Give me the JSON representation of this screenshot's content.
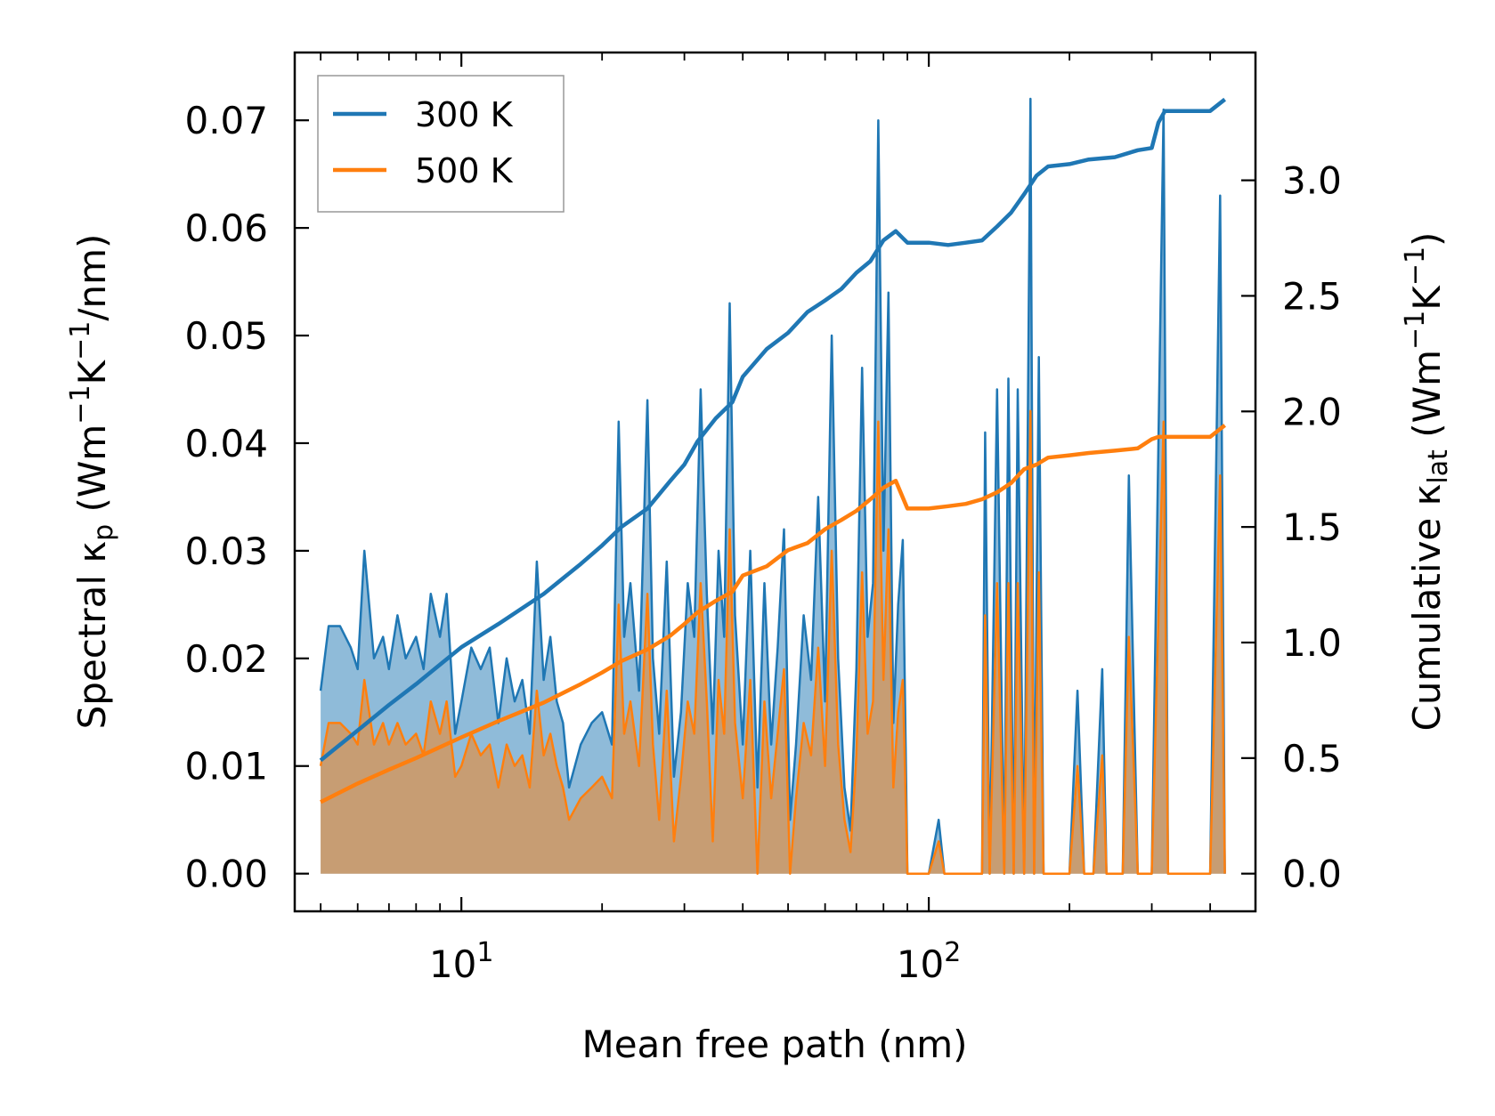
{
  "chart_data": {
    "type": "line",
    "xscale": "log",
    "xlabel": "Mean free path (nm)",
    "xlim": [
      4.4,
      500
    ],
    "xticks": [
      {
        "value": 10,
        "base": "10",
        "exp": "1"
      },
      {
        "value": 100,
        "base": "10",
        "exp": "2"
      }
    ],
    "ylabel_left": {
      "prefix": "Spectral κ",
      "sub": "p",
      "unit_a": " (Wm",
      "sup1": "−1",
      "unit_b": "K",
      "sup2": "−1",
      "unit_c": "/nm)"
    },
    "ylabel_right": {
      "prefix": "Cumulative κ",
      "sub": "lat",
      "unit_a": " (Wm",
      "sup1": "−1",
      "unit_b": "K",
      "sup2": "−1",
      "unit_c": ")"
    },
    "ylim_left": [
      -0.0035,
      0.0763
    ],
    "yticks_left": [
      "0.00",
      "0.01",
      "0.02",
      "0.03",
      "0.04",
      "0.05",
      "0.06",
      "0.07"
    ],
    "ylim_right": [
      -0.163,
      3.553
    ],
    "yticks_right": [
      "0.0",
      "0.5",
      "1.0",
      "1.5",
      "2.0",
      "2.5",
      "3.0"
    ],
    "legend": {
      "position": "top-left",
      "entries": [
        "300 K",
        "500 K"
      ]
    },
    "colors": {
      "300 K": "#1f77b4",
      "500 K": "#ff7f0e"
    },
    "spectral_300K": {
      "x": [
        5.0,
        5.2,
        5.5,
        5.8,
        6.0,
        6.2,
        6.5,
        6.8,
        7.0,
        7.3,
        7.6,
        8.0,
        8.3,
        8.6,
        9.0,
        9.3,
        9.7,
        10.0,
        10.5,
        11.0,
        11.5,
        12.0,
        12.5,
        13.0,
        13.5,
        14.0,
        14.5,
        15.0,
        15.5,
        16.0,
        16.5,
        17.0,
        18.0,
        19.0,
        20.0,
        21.0,
        21.7,
        22.3,
        23.0,
        24.0,
        25.0,
        25.7,
        26.5,
        27.5,
        28.5,
        29.5,
        30.5,
        31.5,
        32.5,
        33.5,
        34.5,
        35.5,
        36.5,
        37.5,
        38.5,
        40.0,
        41.5,
        43.0,
        44.5,
        46.0,
        47.5,
        49.0,
        50.5,
        52.0,
        54.0,
        56.0,
        58.0,
        60.0,
        62.0,
        64.0,
        66.0,
        68.0,
        70.0,
        72.0,
        74.0,
        76.0,
        78.0,
        80.0,
        82.0,
        84.0,
        86.0,
        88.0,
        90.0,
        93.0,
        96.0,
        100.0,
        105.0,
        108.0,
        112.0,
        120.0,
        130.0,
        132.0,
        135.0,
        140.0,
        145.0,
        148.0,
        152.0,
        155.0,
        160.0,
        165.0,
        168.0,
        172.0,
        176.0,
        180.0,
        185.0,
        190.0,
        200.0,
        208.0,
        215.0,
        225.0,
        235.0,
        240.0,
        250.0,
        260.0,
        268.0,
        280.0,
        300.0,
        318.0,
        325.0,
        335.0,
        345.0,
        400.0,
        420.0,
        430.0
      ],
      "values": [
        0.017,
        0.023,
        0.023,
        0.021,
        0.019,
        0.03,
        0.02,
        0.022,
        0.019,
        0.024,
        0.02,
        0.022,
        0.019,
        0.026,
        0.022,
        0.026,
        0.013,
        0.016,
        0.021,
        0.019,
        0.021,
        0.014,
        0.02,
        0.016,
        0.018,
        0.013,
        0.029,
        0.018,
        0.022,
        0.016,
        0.014,
        0.008,
        0.012,
        0.014,
        0.015,
        0.012,
        0.042,
        0.022,
        0.027,
        0.017,
        0.044,
        0.02,
        0.013,
        0.029,
        0.009,
        0.015,
        0.027,
        0.022,
        0.045,
        0.026,
        0.013,
        0.03,
        0.022,
        0.053,
        0.024,
        0.012,
        0.03,
        0.008,
        0.027,
        0.012,
        0.021,
        0.032,
        0.005,
        0.012,
        0.024,
        0.018,
        0.035,
        0.016,
        0.05,
        0.02,
        0.008,
        0.004,
        0.019,
        0.047,
        0.022,
        0.027,
        0.07,
        0.03,
        0.054,
        0.014,
        0.025,
        0.031,
        0.0,
        0.0,
        0.0,
        0.0,
        0.005,
        0.0,
        0.0,
        0.0,
        0.0,
        0.041,
        0.0,
        0.045,
        0.0,
        0.046,
        0.0,
        0.045,
        0.0,
        0.072,
        0.0,
        0.048,
        0.0,
        0.0,
        0.0,
        0.0,
        0.0,
        0.017,
        0.0,
        0.0,
        0.019,
        0.0,
        0.0,
        0.0,
        0.037,
        0.0,
        0.0,
        0.071,
        0.0,
        0.0,
        0.0,
        0.0,
        0.063,
        0.0
      ]
    },
    "spectral_500K": {
      "x": [
        5.0,
        5.2,
        5.5,
        5.8,
        6.0,
        6.2,
        6.5,
        6.8,
        7.0,
        7.3,
        7.6,
        8.0,
        8.3,
        8.6,
        9.0,
        9.3,
        9.7,
        10.0,
        10.5,
        11.0,
        11.5,
        12.0,
        12.5,
        13.0,
        13.5,
        14.0,
        14.5,
        15.0,
        15.5,
        16.0,
        16.5,
        17.0,
        18.0,
        19.0,
        20.0,
        21.0,
        21.7,
        22.3,
        23.0,
        24.0,
        25.0,
        25.7,
        26.5,
        27.5,
        28.5,
        29.5,
        30.5,
        31.5,
        32.5,
        33.5,
        34.5,
        35.5,
        36.5,
        37.5,
        38.5,
        40.0,
        41.5,
        43.0,
        44.5,
        46.0,
        47.5,
        49.0,
        50.5,
        52.0,
        54.0,
        56.0,
        58.0,
        60.0,
        62.0,
        64.0,
        66.0,
        68.0,
        70.0,
        72.0,
        74.0,
        76.0,
        78.0,
        80.0,
        82.0,
        84.0,
        86.0,
        88.0,
        90.0,
        93.0,
        96.0,
        100.0,
        105.0,
        108.0,
        112.0,
        120.0,
        130.0,
        132.0,
        135.0,
        140.0,
        145.0,
        148.0,
        152.0,
        155.0,
        160.0,
        165.0,
        168.0,
        172.0,
        176.0,
        180.0,
        185.0,
        190.0,
        200.0,
        208.0,
        215.0,
        225.0,
        235.0,
        240.0,
        250.0,
        260.0,
        268.0,
        280.0,
        300.0,
        318.0,
        325.0,
        335.0,
        345.0,
        400.0,
        420.0,
        430.0
      ],
      "values": [
        0.01,
        0.014,
        0.014,
        0.013,
        0.012,
        0.018,
        0.012,
        0.014,
        0.012,
        0.014,
        0.012,
        0.013,
        0.011,
        0.016,
        0.013,
        0.016,
        0.009,
        0.01,
        0.013,
        0.011,
        0.012,
        0.008,
        0.012,
        0.01,
        0.011,
        0.008,
        0.017,
        0.011,
        0.013,
        0.01,
        0.008,
        0.005,
        0.007,
        0.008,
        0.009,
        0.007,
        0.025,
        0.013,
        0.016,
        0.01,
        0.026,
        0.012,
        0.005,
        0.017,
        0.003,
        0.009,
        0.016,
        0.013,
        0.027,
        0.016,
        0.003,
        0.018,
        0.013,
        0.032,
        0.014,
        0.007,
        0.018,
        0.0,
        0.016,
        0.007,
        0.013,
        0.019,
        0.0,
        0.007,
        0.014,
        0.011,
        0.021,
        0.01,
        0.03,
        0.012,
        0.005,
        0.002,
        0.011,
        0.028,
        0.013,
        0.016,
        0.042,
        0.018,
        0.032,
        0.008,
        0.015,
        0.018,
        0.0,
        0.0,
        0.0,
        0.0,
        0.003,
        0.0,
        0.0,
        0.0,
        0.0,
        0.024,
        0.0,
        0.027,
        0.0,
        0.027,
        0.0,
        0.027,
        0.0,
        0.043,
        0.0,
        0.028,
        0.0,
        0.0,
        0.0,
        0.0,
        0.0,
        0.01,
        0.0,
        0.0,
        0.011,
        0.0,
        0.0,
        0.0,
        0.022,
        0.0,
        0.0,
        0.042,
        0.0,
        0.0,
        0.0,
        0.0,
        0.037,
        0.0
      ]
    },
    "cumulative_300K": {
      "x": [
        5.0,
        6.0,
        7.0,
        8.0,
        10.0,
        12.0,
        15.0,
        18.0,
        20.0,
        22.0,
        25.0,
        28.0,
        30.0,
        32.0,
        35.0,
        38.0,
        40.0,
        45.0,
        50.0,
        55.0,
        60.0,
        65.0,
        70.0,
        75.0,
        80.0,
        85.0,
        90.0,
        100.0,
        110.0,
        120.0,
        130.0,
        140.0,
        150.0,
        160.0,
        170.0,
        180.0,
        200.0,
        220.0,
        250.0,
        280.0,
        300.0,
        310.0,
        320.0,
        340.0,
        400.0,
        430.0
      ],
      "values": [
        0.49,
        0.62,
        0.73,
        0.82,
        0.98,
        1.08,
        1.21,
        1.34,
        1.42,
        1.5,
        1.58,
        1.7,
        1.77,
        1.87,
        1.97,
        2.04,
        2.15,
        2.27,
        2.34,
        2.43,
        2.48,
        2.53,
        2.6,
        2.65,
        2.74,
        2.78,
        2.73,
        2.73,
        2.72,
        2.73,
        2.74,
        2.8,
        2.86,
        2.94,
        3.02,
        3.06,
        3.07,
        3.09,
        3.1,
        3.13,
        3.14,
        3.25,
        3.3,
        3.3,
        3.3,
        3.35
      ]
    },
    "cumulative_500K": {
      "x": [
        5.0,
        6.0,
        7.0,
        8.0,
        10.0,
        12.0,
        15.0,
        18.0,
        20.0,
        22.0,
        25.0,
        28.0,
        30.0,
        32.0,
        35.0,
        38.0,
        40.0,
        45.0,
        50.0,
        55.0,
        60.0,
        65.0,
        70.0,
        75.0,
        80.0,
        85.0,
        90.0,
        100.0,
        110.0,
        120.0,
        130.0,
        140.0,
        150.0,
        160.0,
        170.0,
        180.0,
        200.0,
        220.0,
        250.0,
        280.0,
        300.0,
        310.0,
        320.0,
        340.0,
        400.0,
        430.0
      ],
      "values": [
        0.31,
        0.39,
        0.45,
        0.5,
        0.59,
        0.66,
        0.74,
        0.82,
        0.87,
        0.92,
        0.97,
        1.03,
        1.08,
        1.13,
        1.18,
        1.22,
        1.29,
        1.33,
        1.4,
        1.43,
        1.49,
        1.53,
        1.57,
        1.62,
        1.67,
        1.7,
        1.58,
        1.58,
        1.59,
        1.6,
        1.62,
        1.65,
        1.69,
        1.75,
        1.77,
        1.8,
        1.81,
        1.82,
        1.83,
        1.84,
        1.88,
        1.89,
        1.89,
        1.89,
        1.89,
        1.94
      ]
    }
  }
}
